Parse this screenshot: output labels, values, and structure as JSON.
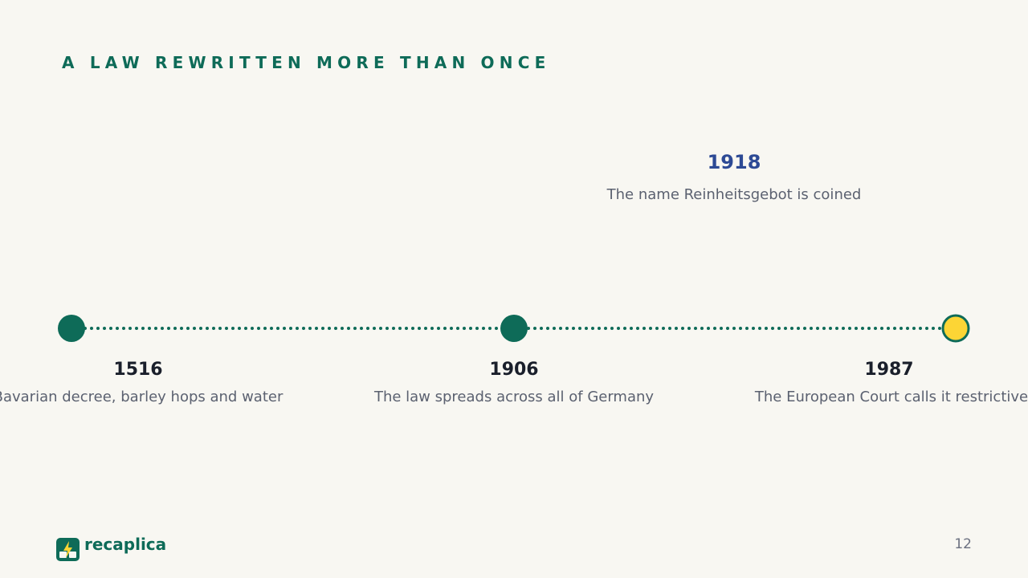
{
  "title": "A LAW REWRITTEN MORE THAN ONCE",
  "events": [
    {
      "year": "1516",
      "text": "Bavarian decree, barley hops and water"
    },
    {
      "year": "1906",
      "text": "The law spreads across all of Germany"
    },
    {
      "year": "1918",
      "text": "The name Reinheitsgebot is coined"
    },
    {
      "year": "1987",
      "text": "The European Court calls it restrictive"
    }
  ],
  "brand": "recaplica",
  "page_number": "12"
}
